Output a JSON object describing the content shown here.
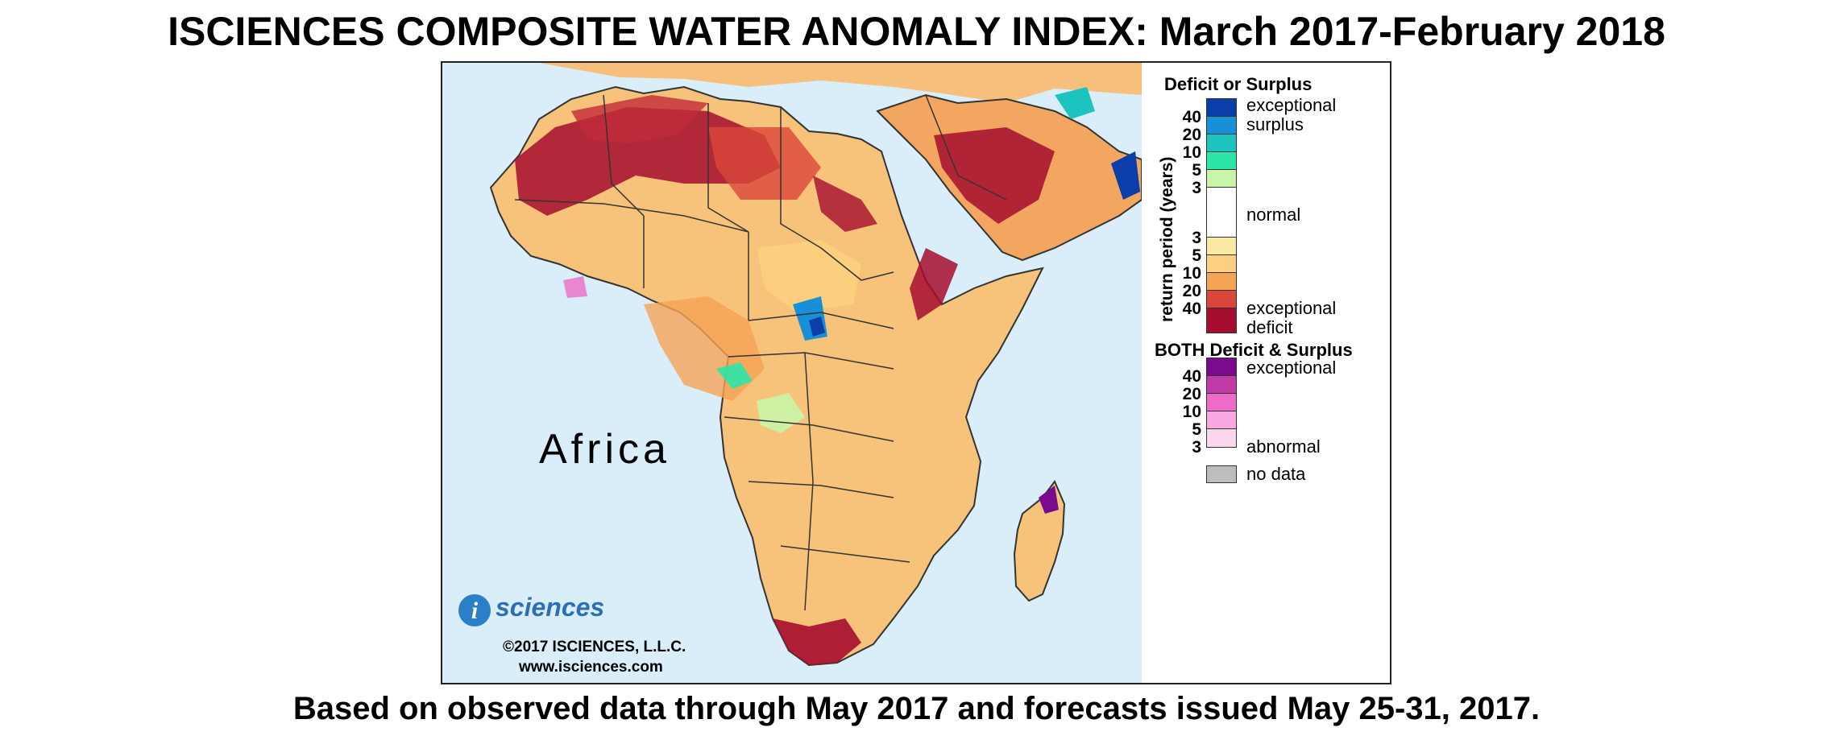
{
  "title": "ISCIENCES COMPOSITE WATER ANOMALY INDEX: March 2017-February 2018",
  "footer": "Based on observed data through May 2017 and forecasts issued May 25-31, 2017.",
  "map": {
    "region_label": "Africa",
    "logo_text": "sciences",
    "copyright": "©2017 ISCIENCES, L.L.C.",
    "website": "www.isciences.com",
    "ocean_color": "#d9eef8"
  },
  "legend": {
    "deficit_surplus_title": "Deficit or Surplus",
    "axis_label": "return period (years)",
    "surplus_ticks": [
      "40",
      "20",
      "10",
      "5",
      "3"
    ],
    "deficit_ticks": [
      "3",
      "5",
      "10",
      "20",
      "40"
    ],
    "exceptional_label_1": "exceptional",
    "surplus_label": "surplus",
    "normal_label": "normal",
    "exceptional_label_2": "exceptional",
    "deficit_label": "deficit",
    "both_title": "BOTH Deficit & Surplus",
    "both_ticks": [
      "40",
      "20",
      "10",
      "5",
      "3"
    ],
    "both_exceptional_label": "exceptional",
    "abnormal_label": "abnormal",
    "no_data_label": "no data",
    "surplus_colors": [
      "#0b3ea8",
      "#1890d8",
      "#1cc4c0",
      "#2be6a8",
      "#c8f5a6"
    ],
    "normal_color": "#ffffff",
    "deficit_colors": [
      "#fde9a6",
      "#fcd080",
      "#f5a355",
      "#d9463a",
      "#a50d2f"
    ],
    "both_colors": [
      "#7a0a8e",
      "#c03aa8",
      "#ec6cc8",
      "#f7a8e0",
      "#fad6ec"
    ],
    "no_data_color": "#bdbdbd"
  }
}
